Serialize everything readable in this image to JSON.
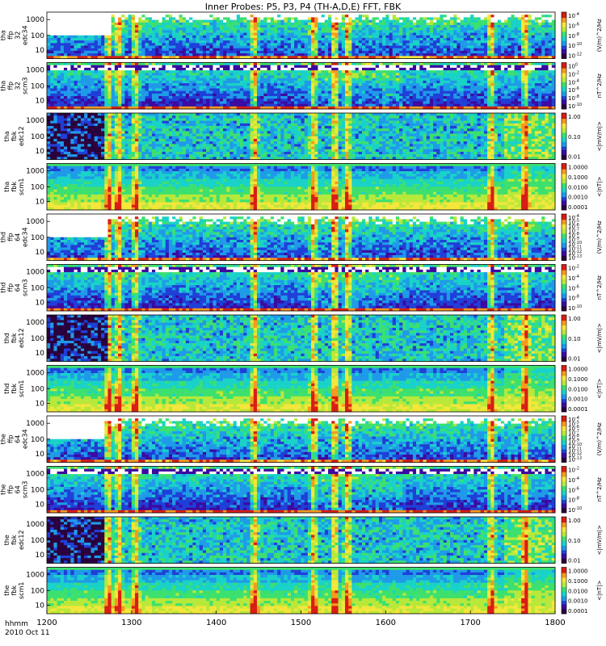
{
  "title": "Inner Probes: P5, P3, P4  (TH-A,D,E) FFT, FBK",
  "footer": {
    "time_label_1": "hhmm",
    "time_label_2": "2010 Oct 11"
  },
  "chart_data": {
    "type": "heatmap",
    "title": "Inner Probes: P5, P3, P4  (TH-A,D,E) FFT, FBK",
    "x_axis": {
      "label": "hhmm",
      "sublabel": "2010 Oct 11",
      "ticks": [
        "1200",
        "1300",
        "1400",
        "1500",
        "1600",
        "1700",
        "1800"
      ],
      "range": [
        1200,
        1800
      ]
    },
    "panels": [
      {
        "id": "tha_ffp32_edc34",
        "ylabel": [
          "tha",
          "ffp",
          "32",
          "edc34"
        ],
        "yticks": [
          "10",
          "100",
          "1000"
        ],
        "cbar_ticks": [
          "10^-4",
          "10^-6",
          "10^-8",
          "10^-10",
          "10^-12"
        ],
        "cbar_label": "(V/m)^2/Hz",
        "kind": "ffp_edc",
        "quiet_end": 1275
      },
      {
        "id": "tha_ffp32_scm3",
        "ylabel": [
          "tha",
          "ffp",
          "32",
          "scm3"
        ],
        "yticks": [
          "10",
          "100",
          "1000"
        ],
        "cbar_ticks": [
          "10^0",
          "10^-2",
          "10^-4",
          "10^-6",
          "10^-8",
          "10^-10"
        ],
        "cbar_label": "nT^2/Hz",
        "kind": "ffp_scm",
        "quiet_end": 1275
      },
      {
        "id": "tha_fbk_edc12",
        "ylabel": [
          "tha",
          "fbk",
          "edc12"
        ],
        "yticks": [
          "10",
          "100",
          "1000"
        ],
        "cbar_ticks": [
          "1.00",
          "0.10",
          "0.01"
        ],
        "cbar_label": "<|mV/m|>",
        "kind": "fbk_edc",
        "quiet_end": 1270
      },
      {
        "id": "tha_fbk_scm1",
        "ylabel": [
          "tha",
          "fbk",
          "scm1"
        ],
        "yticks": [
          "10",
          "100",
          "1000"
        ],
        "cbar_ticks": [
          "1.0000",
          "0.1000",
          "0.0100",
          "0.0010",
          "0.0001"
        ],
        "cbar_label": "<|nT|>",
        "kind": "fbk_scm",
        "quiet_end": 1270
      },
      {
        "id": "thd_ffp64_edc34",
        "ylabel": [
          "thd",
          "ffp",
          "64",
          "edc34"
        ],
        "yticks": [
          "10",
          "100",
          "1000"
        ],
        "cbar_ticks": [
          "10^-4",
          "10^-5",
          "10^-6",
          "10^-7",
          "10^-8",
          "10^-9",
          "10^-10",
          "10^-11",
          "10^-12",
          "10^-13"
        ],
        "cbar_label": "(V/m)^2/Hz",
        "kind": "ffp_edc",
        "quiet_end": 1273
      },
      {
        "id": "thd_ffp64_scm3",
        "ylabel": [
          "thd",
          "ffp",
          "64",
          "scm3"
        ],
        "yticks": [
          "10",
          "100",
          "1000"
        ],
        "cbar_ticks": [
          "10^-2",
          "10^-4",
          "10^-6",
          "10^-8",
          "10^-10"
        ],
        "cbar_label": "nT^2/Hz",
        "kind": "ffp_scm",
        "quiet_end": 1273
      },
      {
        "id": "thd_fbk_edc12",
        "ylabel": [
          "thd",
          "fbk",
          "edc12"
        ],
        "yticks": [
          "10",
          "100",
          "1000"
        ],
        "cbar_ticks": [
          "1.00",
          "0.10",
          "0.01"
        ],
        "cbar_label": "<|mV/m|>",
        "kind": "fbk_edc",
        "quiet_end": 1272
      },
      {
        "id": "thd_fbk_scm1",
        "ylabel": [
          "thd",
          "fbk",
          "scm1"
        ],
        "yticks": [
          "10",
          "100",
          "1000"
        ],
        "cbar_ticks": [
          "1.0000",
          "0.1000",
          "0.0100",
          "0.0010",
          "0.0001"
        ],
        "cbar_label": "<|nT|>",
        "kind": "fbk_scm",
        "quiet_end": 1272
      },
      {
        "id": "the_ffp64_edc34",
        "ylabel": [
          "the",
          "ffp",
          "64",
          "edc34"
        ],
        "yticks": [
          "10",
          "100",
          "1000"
        ],
        "cbar_ticks": [
          "10^-4",
          "10^-5",
          "10^-6",
          "10^-7",
          "10^-8",
          "10^-9",
          "10^-10",
          "10^-11",
          "10^-12",
          "10^-13"
        ],
        "cbar_label": "(V/m)^2/Hz",
        "kind": "ffp_edc",
        "quiet_end": 1268
      },
      {
        "id": "the_ffp64_scm3",
        "ylabel": [
          "the",
          "ffp",
          "64",
          "scm3"
        ],
        "yticks": [
          "10",
          "100",
          "1000"
        ],
        "cbar_ticks": [
          "10^-2",
          "10^-4",
          "10^-6",
          "10^-8",
          "10^-10"
        ],
        "cbar_label": "nT^2/Hz",
        "kind": "ffp_scm",
        "quiet_end": 1268
      },
      {
        "id": "the_fbk_edc12",
        "ylabel": [
          "the",
          "fbk",
          "edc12"
        ],
        "yticks": [
          "10",
          "100",
          "1000"
        ],
        "cbar_ticks": [
          "1.00",
          "0.10",
          "0.01"
        ],
        "cbar_label": "<|mV/m|>",
        "kind": "fbk_edc",
        "quiet_end": 1270
      },
      {
        "id": "the_fbk_scm1",
        "ylabel": [
          "the",
          "fbk",
          "scm1"
        ],
        "yticks": [
          "10",
          "100",
          "1000"
        ],
        "cbar_ticks": [
          "1.0000",
          "0.1000",
          "0.0100",
          "0.0010",
          "0.0001"
        ],
        "cbar_label": "<|nT|>",
        "kind": "fbk_scm",
        "quiet_end": 1270
      }
    ],
    "y_scale": "log",
    "colormap": [
      "#2a003c",
      "#3b0aa0",
      "#1f3fd8",
      "#1f9ae8",
      "#19d2c8",
      "#3ce06e",
      "#b8e83a",
      "#f4e63a",
      "#f59a1e",
      "#d81e14"
    ],
    "event_times": [
      1273,
      1285,
      1305,
      1445,
      1515,
      1540,
      1555,
      1725,
      1765
    ]
  }
}
